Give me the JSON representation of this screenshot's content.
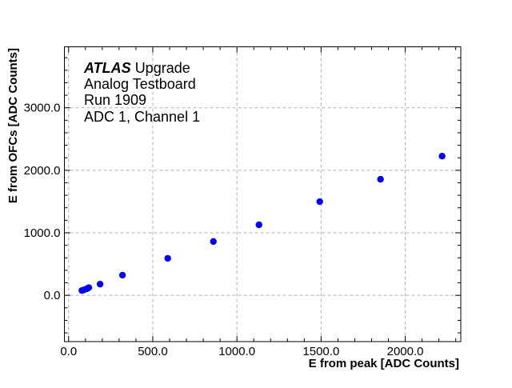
{
  "chart_data": {
    "type": "scatter",
    "title": "",
    "xlabel": "E from peak [ADC Counts]",
    "ylabel": "E from OFCs [ADC Counts]",
    "xlim": [
      -25,
      2330
    ],
    "ylim": [
      -740,
      3975
    ],
    "xticks": [
      0,
      500,
      1000,
      1500,
      2000
    ],
    "xtick_labels": [
      "0.0",
      "500.0",
      "1000.0",
      "1500.0",
      "2000.0"
    ],
    "yticks": [
      0,
      1000,
      2000,
      3000
    ],
    "ytick_labels": [
      "0.0",
      "1000.0",
      "2000.0",
      "3000.0"
    ],
    "grid": true,
    "marker_color": "#0000ff",
    "x": [
      79,
      90,
      109,
      120,
      187,
      320,
      589,
      860,
      1131,
      1492,
      1853,
      2219
    ],
    "y": [
      77,
      87,
      106,
      123,
      179,
      323,
      592,
      861,
      1128,
      1498,
      1856,
      2226
    ],
    "annotation": {
      "brand": "ATLAS",
      "brand_suffix": "Upgrade",
      "lines": [
        "Analog Testboard",
        "Run 1909",
        "ADC 1, Channel 1"
      ]
    }
  }
}
